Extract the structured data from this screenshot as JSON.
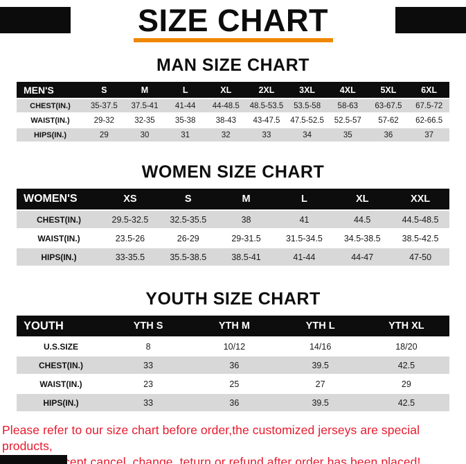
{
  "title": "SIZE CHART",
  "colors": {
    "accent_orange": "#ef8700",
    "header_black": "#0d0d0d",
    "row_gray": "#d8d8d8",
    "footer_red": "#e8192c"
  },
  "sections": [
    {
      "heading": "MAN SIZE CHART",
      "table": {
        "header": [
          "MEN'S",
          "S",
          "M",
          "L",
          "XL",
          "2XL",
          "3XL",
          "4XL",
          "5XL",
          "6XL"
        ],
        "rows": [
          [
            "CHEST(IN.)",
            "35-37.5",
            "37.5-41",
            "41-44",
            "44-48.5",
            "48.5-53.5",
            "53.5-58",
            "58-63",
            "63-67.5",
            "67.5-72"
          ],
          [
            "WAIST(IN.)",
            "29-32",
            "32-35",
            "35-38",
            "38-43",
            "43-47.5",
            "47.5-52.5",
            "52.5-57",
            "57-62",
            "62-66.5"
          ],
          [
            "HIPS(IN.)",
            "29",
            "30",
            "31",
            "32",
            "33",
            "34",
            "35",
            "36",
            "37"
          ]
        ]
      }
    },
    {
      "heading": "WOMEN SIZE CHART",
      "table": {
        "header": [
          "WOMEN'S",
          "XS",
          "S",
          "M",
          "L",
          "XL",
          "XXL"
        ],
        "rows": [
          [
            "CHEST(IN.)",
            "29.5-32.5",
            "32.5-35.5",
            "38",
            "41",
            "44.5",
            "44.5-48.5"
          ],
          [
            "WAIST(IN.)",
            "23.5-26",
            "26-29",
            "29-31.5",
            "31.5-34.5",
            "34.5-38.5",
            "38.5-42.5"
          ],
          [
            "HIPS(IN.)",
            "33-35.5",
            "35.5-38.5",
            "38.5-41",
            "41-44",
            "44-47",
            "47-50"
          ]
        ]
      }
    },
    {
      "heading": "YOUTH SIZE CHART",
      "table": {
        "header": [
          "YOUTH",
          "YTH S",
          "YTH M",
          "YTH L",
          "YTH XL"
        ],
        "rows": [
          [
            "U.S.SIZE",
            "8",
            "10/12",
            "14/16",
            "18/20"
          ],
          [
            "CHEST(IN.)",
            "33",
            "36",
            "39.5",
            "42.5"
          ],
          [
            "WAIST(IN.)",
            "23",
            "25",
            "27",
            "29"
          ],
          [
            "HIPS(IN.)",
            "33",
            "36",
            "39.5",
            "42.5"
          ]
        ]
      }
    }
  ],
  "footer": {
    "line1": "Please refer to our size chart before order,the customized jerseys are special products,",
    "line2": "we don't accept cancel, change, teturn or refund after order has been placed!"
  }
}
